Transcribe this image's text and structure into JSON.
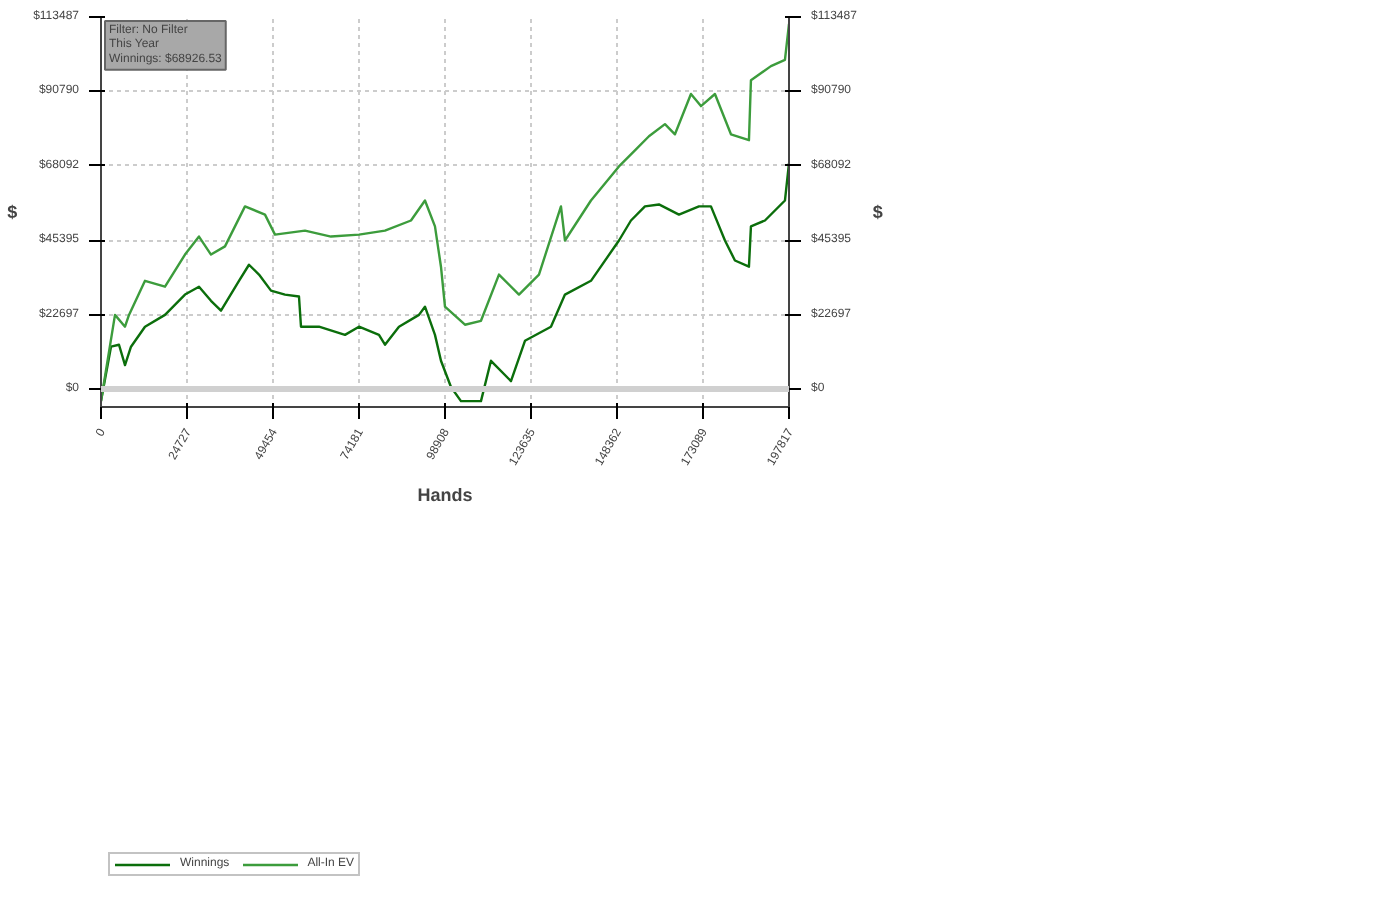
{
  "chart_data": {
    "type": "line",
    "xlabel": "Hands",
    "ylabel": "$",
    "y2label": "$",
    "annotations": [
      "Filter: No Filter",
      "This Year",
      "Winnings: $68926.53"
    ],
    "xlim": [
      0,
      197817
    ],
    "xticks": [
      0,
      24727,
      49454,
      74181,
      98908,
      123635,
      148362,
      173089,
      197817
    ],
    "ylim": [
      -5500,
      113487
    ],
    "yticks": [
      {
        "value": 0,
        "label": "$0"
      },
      {
        "value": 22697,
        "label": "$22697"
      },
      {
        "value": 45395,
        "label": "$45395"
      },
      {
        "value": 68092,
        "label": "$68092"
      },
      {
        "value": 90790,
        "label": "$90790"
      },
      {
        "value": 113487,
        "label": "$113487"
      }
    ],
    "y2lim": [
      -5500,
      113487
    ],
    "y2ticks": [
      {
        "value": 0,
        "label": "$0"
      },
      {
        "value": 22697,
        "label": "$22697"
      },
      {
        "value": 45395,
        "label": "$45395"
      },
      {
        "value": 68092,
        "label": "$68092"
      },
      {
        "value": 90790,
        "label": "$90790"
      },
      {
        "value": 113487,
        "label": "$113487"
      }
    ],
    "ref_lines": [
      {
        "axis": "y",
        "value": 0,
        "color": "#d0d0d0"
      }
    ],
    "grid": true,
    "legend": "bottom",
    "marker": "none",
    "line_style": "solid",
    "series": [
      {
        "name": "Winnings",
        "color": "#0b6e0b",
        "x": [
          0,
          2875,
          5175,
          6900,
          8625,
          12650,
          18400,
          24150,
          28175,
          31625,
          34500,
          39675,
          42550,
          45425,
          48875,
          52900,
          56925,
          57500,
          62675,
          70150,
          74175,
          79925,
          81650,
          85675,
          91425,
          93150,
          96025,
          97750,
          100625,
          103500,
          109250,
          112125,
          117875,
          121900,
          129375,
          133400,
          140875,
          148925,
          152375,
          156400,
          160425,
          166175,
          171925,
          175375,
          179400,
          182275,
          186300,
          186875,
          190900,
          196650,
          197817
        ],
        "values": [
          -3700,
          12900,
          13500,
          7300,
          12900,
          19000,
          22600,
          28800,
          31200,
          26900,
          23900,
          33000,
          37900,
          34900,
          30000,
          28800,
          28200,
          19000,
          19000,
          16500,
          19000,
          16500,
          13500,
          19000,
          22600,
          25100,
          16500,
          8600,
          600,
          -3700,
          -3700,
          8600,
          2400,
          14700,
          19000,
          28800,
          33000,
          45300,
          51400,
          55700,
          56300,
          53200,
          55700,
          55700,
          45300,
          39200,
          37300,
          49600,
          51400,
          57500,
          68900
        ]
      },
      {
        "name": "All-In EV",
        "color": "#3c9c3c",
        "x": [
          0,
          4025,
          6900,
          8050,
          12650,
          18400,
          24150,
          28175,
          31625,
          35650,
          41400,
          47150,
          50025,
          58650,
          66125,
          74175,
          81650,
          89125,
          93150,
          96025,
          97750,
          98900,
          104650,
          109250,
          114425,
          120175,
          125925,
          132250,
          133400,
          140875,
          148925,
          153525,
          157550,
          162150,
          165025,
          169625,
          172500,
          176525,
          181125,
          186300,
          186875,
          192625,
          196650,
          197817
        ],
        "values": [
          -3700,
          22600,
          19000,
          22600,
          33000,
          31200,
          41000,
          46500,
          41000,
          43500,
          55700,
          53200,
          47100,
          48300,
          46500,
          47100,
          48300,
          51400,
          57500,
          49600,
          37300,
          25100,
          19600,
          20800,
          34900,
          28800,
          34900,
          55700,
          45300,
          57500,
          67900,
          72800,
          77100,
          80800,
          77700,
          90000,
          86300,
          90000,
          77700,
          75900,
          94200,
          98500,
          100400,
          111400
        ]
      }
    ]
  }
}
